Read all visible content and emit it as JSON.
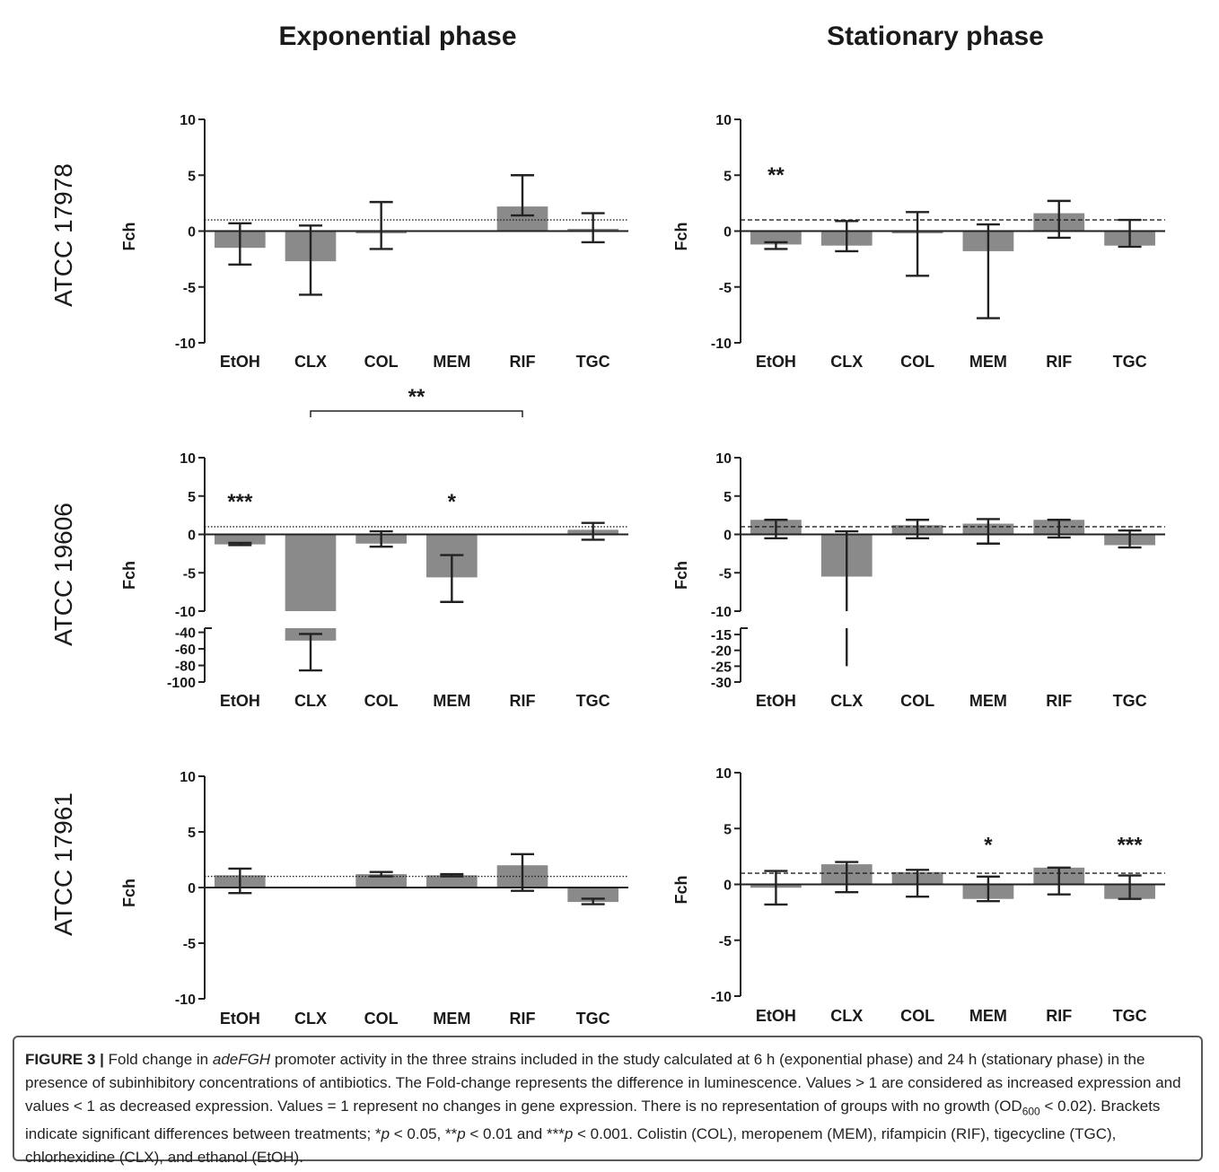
{
  "column_titles": [
    "Exponential phase",
    "Stationary phase"
  ],
  "row_labels": [
    "ATCC 17978",
    "ATCC 19606",
    "ATCC 17961"
  ],
  "y_axis_label": "Fch",
  "categories": [
    "EtOH",
    "CLX",
    "COL",
    "MEM",
    "RIF",
    "TGC"
  ],
  "colors": {
    "bar": "#8a8a8a",
    "axis": "#222222",
    "text": "#1a1a1a"
  },
  "chart_data": [
    {
      "type": "bar",
      "title": "Exponential phase",
      "row": "ATCC 17978",
      "ylabel": "Fch",
      "categories": [
        "EtOH",
        "CLX",
        "COL",
        "MEM",
        "RIF",
        "TGC"
      ],
      "values": [
        -1.5,
        -2.7,
        -0.2,
        null,
        2.2,
        0.2
      ],
      "err_hi": [
        0.7,
        0.5,
        2.6,
        null,
        5.0,
        1.6
      ],
      "err_lo": [
        -3.0,
        -5.7,
        -1.6,
        null,
        1.4,
        -1.0
      ],
      "ylim": [
        -10,
        10
      ],
      "yticks": [
        -10,
        -5,
        0,
        5,
        10
      ],
      "reference_line": 1,
      "reference_style": "dotted",
      "annotations": []
    },
    {
      "type": "bar",
      "title": "Stationary phase",
      "row": "ATCC 17978",
      "ylabel": "Fch",
      "categories": [
        "EtOH",
        "CLX",
        "COL",
        "MEM",
        "RIF",
        "TGC"
      ],
      "values": [
        -1.2,
        -1.3,
        -0.2,
        -1.8,
        1.6,
        -1.3
      ],
      "err_hi": [
        -1.0,
        0.9,
        1.7,
        0.6,
        2.7,
        1.0
      ],
      "err_lo": [
        -1.6,
        -1.8,
        -4.0,
        -7.8,
        -0.6,
        -1.4
      ],
      "ylim": [
        -10,
        10
      ],
      "yticks": [
        -10,
        -5,
        0,
        5,
        10
      ],
      "reference_line": 1,
      "reference_style": "dashed",
      "annotations": [
        {
          "text": "**",
          "category": "EtOH",
          "y": 5.5
        }
      ]
    },
    {
      "type": "bar",
      "title": "Exponential phase",
      "row": "ATCC 19606",
      "ylabel": "Fch",
      "categories": [
        "EtOH",
        "CLX",
        "COL",
        "MEM",
        "RIF",
        "TGC"
      ],
      "values": [
        -1.3,
        -50,
        -1.2,
        -5.6,
        null,
        0.6
      ],
      "err_hi": [
        -1.1,
        -42,
        0.4,
        -2.7,
        null,
        1.5
      ],
      "err_lo": [
        -1.4,
        -86,
        -1.6,
        -8.8,
        null,
        -0.7
      ],
      "ylim": [
        -100,
        10
      ],
      "yticks": [
        -100,
        -80,
        -60,
        -40,
        -10,
        -5,
        0,
        5,
        10
      ],
      "axis_break": {
        "upper": [
          -10,
          10
        ],
        "lower": [
          -100,
          -35
        ]
      },
      "reference_line": 1,
      "reference_style": "dotted",
      "annotations": [
        {
          "text": "***",
          "category": "EtOH",
          "y": 5
        },
        {
          "text": "*",
          "category": "MEM",
          "y": 5
        }
      ],
      "bracket": {
        "from": "CLX",
        "to": "RIF",
        "text": "**"
      }
    },
    {
      "type": "bar",
      "title": "Stationary phase",
      "row": "ATCC 19606",
      "ylabel": "Fch",
      "categories": [
        "EtOH",
        "CLX",
        "COL",
        "MEM",
        "RIF",
        "TGC"
      ],
      "values": [
        1.9,
        -5.5,
        1.2,
        1.4,
        1.9,
        -1.4
      ],
      "err_hi": [
        1.9,
        0.4,
        1.9,
        2.0,
        1.9,
        0.5
      ],
      "err_lo": [
        -0.5,
        -25,
        -0.5,
        -1.2,
        -0.4,
        -1.7
      ],
      "ylim": [
        -30,
        10
      ],
      "yticks": [
        -30,
        -25,
        -20,
        -15,
        -10,
        -5,
        0,
        5,
        10
      ],
      "axis_break": {
        "upper": [
          -10,
          10
        ],
        "lower": [
          -30,
          -13
        ]
      },
      "reference_line": 1,
      "reference_style": "dashed",
      "annotations": []
    },
    {
      "type": "bar",
      "title": "Exponential phase",
      "row": "ATCC 17961",
      "ylabel": "Fch",
      "categories": [
        "EtOH",
        "CLX",
        "COL",
        "MEM",
        "RIF",
        "TGC"
      ],
      "values": [
        1.1,
        null,
        1.2,
        1.1,
        2.0,
        -1.3
      ],
      "err_hi": [
        1.7,
        null,
        1.4,
        1.2,
        3.0,
        -1.0
      ],
      "err_lo": [
        -0.5,
        null,
        1.0,
        1.0,
        -0.3,
        -1.5
      ],
      "ylim": [
        -10,
        10
      ],
      "yticks": [
        -10,
        -5,
        0,
        5,
        10
      ],
      "reference_line": 1,
      "reference_style": "dotted",
      "annotations": []
    },
    {
      "type": "bar",
      "title": "Stationary phase",
      "row": "ATCC 17961",
      "ylabel": "Fch",
      "categories": [
        "EtOH",
        "CLX",
        "COL",
        "MEM",
        "RIF",
        "TGC"
      ],
      "values": [
        -0.3,
        1.8,
        1.1,
        -1.3,
        1.5,
        -1.3
      ],
      "err_hi": [
        1.2,
        2.0,
        1.3,
        0.7,
        1.5,
        0.8
      ],
      "err_lo": [
        -1.8,
        -0.7,
        -1.1,
        -1.5,
        -0.9,
        -1.3
      ],
      "ylim": [
        -10,
        10
      ],
      "yticks": [
        -10,
        -5,
        0,
        5,
        10
      ],
      "reference_line": 1,
      "reference_style": "dashed",
      "annotations": [
        {
          "text": "*",
          "category": "MEM",
          "y": 4
        },
        {
          "text": "***",
          "category": "TGC",
          "y": 4
        }
      ]
    }
  ],
  "caption": {
    "label": "FIGURE 3 |",
    "parts": [
      {
        "t": " Fold change in "
      },
      {
        "t": "adeFGH",
        "i": true
      },
      {
        "t": " promoter activity in the three strains included in the study calculated at 6 h (exponential phase) and 24 h (stationary phase) in the presence of subinhibitory concentrations of antibiotics. The Fold-change represents the difference in luminescence. Values > 1 are considered as increased expression and values < 1 as decreased expression. Values = 1 represent no changes in gene expression. There is no representation of groups with no growth (OD"
      },
      {
        "t": "600",
        "sub": true
      },
      {
        "t": " < 0.02). Brackets indicate significant differences between treatments; "
      },
      {
        "t": "*"
      },
      {
        "t": "p",
        "i": true
      },
      {
        "t": " < 0.05, "
      },
      {
        "t": "**"
      },
      {
        "t": "p",
        "i": true
      },
      {
        "t": " < 0.01 and "
      },
      {
        "t": "***"
      },
      {
        "t": "p",
        "i": true
      },
      {
        "t": " < 0.001. Colistin (COL), meropenem (MEM), rifampicin (RIF), tigecycline (TGC), chlorhexidine (CLX), and ethanol (EtOH)."
      }
    ]
  }
}
